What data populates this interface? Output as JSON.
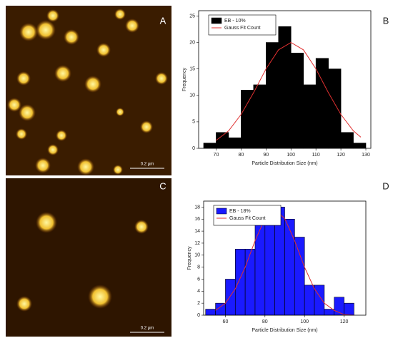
{
  "images": [
    {
      "label": "A",
      "scale_bar": "0.2 µm"
    },
    {
      "label": "C",
      "scale_bar": "0.2 µm"
    }
  ],
  "chart_data": [
    {
      "type": "histogram",
      "panel": "B",
      "x_label": "Particle Distribution Size (nm)",
      "y_label": "Frequency",
      "bins": [
        65,
        70,
        75,
        80,
        85,
        90,
        95,
        100,
        105,
        110,
        115,
        120,
        125,
        130
      ],
      "series": [
        {
          "name": "EB - 10%",
          "color": "#000000",
          "values": [
            1,
            3,
            2,
            11,
            12,
            20,
            23,
            18,
            12,
            17,
            15,
            3,
            1
          ]
        },
        {
          "name": "Gauss Fit Count",
          "color": "#e03030",
          "x": [
            70,
            75,
            80,
            85,
            90,
            95,
            100,
            105,
            110,
            115,
            120,
            125,
            128
          ],
          "values": [
            1.5,
            3.3,
            6.4,
            10.5,
            15,
            18.6,
            20,
            18.6,
            15,
            10.5,
            6.4,
            3.3,
            2.1
          ]
        }
      ],
      "xlim": [
        63,
        132
      ],
      "xticks": [
        70,
        80,
        90,
        100,
        110,
        120,
        130
      ],
      "ylim": [
        0,
        26
      ],
      "yticks": [
        0,
        5,
        10,
        15,
        20,
        25
      ],
      "legend": "upper left"
    },
    {
      "type": "histogram",
      "panel": "D",
      "x_label": "Particle Distribution Size (nm)",
      "y_label": "Frequency",
      "bins": [
        50,
        55,
        60,
        65,
        70,
        75,
        80,
        85,
        90,
        95,
        100,
        105,
        110,
        115,
        120,
        125
      ],
      "series": [
        {
          "name": "EB - 18%",
          "color": "#1a1aff",
          "values": [
            1,
            2,
            6,
            11,
            11,
            15,
            16,
            18,
            16,
            13,
            5,
            5,
            1,
            3,
            2
          ]
        },
        {
          "name": "Gauss Fit Count",
          "color": "#e03030",
          "x": [
            55,
            60,
            65,
            70,
            75,
            80,
            85,
            90,
            95,
            100,
            105,
            110,
            115,
            120,
            125
          ],
          "values": [
            0.8,
            2,
            4.4,
            8,
            12.4,
            16.1,
            17.5,
            16.1,
            12.4,
            8,
            4.4,
            2,
            0.8,
            0.1,
            0
          ]
        }
      ],
      "xlim": [
        49,
        131
      ],
      "xticks": [
        60,
        80,
        100,
        120
      ],
      "ylim": [
        0,
        19
      ],
      "yticks": [
        0,
        2,
        4,
        6,
        8,
        10,
        12,
        14,
        16,
        18
      ],
      "legend": "upper left"
    }
  ]
}
